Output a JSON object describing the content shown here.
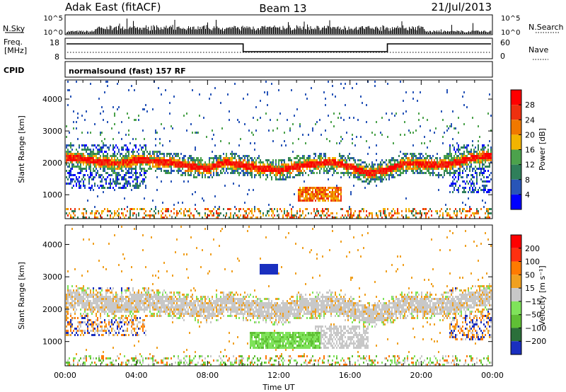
{
  "header": {
    "station": "Adak East (fitACF)",
    "beam": "Beam 13",
    "date": "21/Jul/2013"
  },
  "summary": {
    "nsky_label": "N.Sky",
    "nsky_ticks": [
      "10^5",
      "10^0"
    ],
    "nsearch_label": "N.Search",
    "freq_label_line1": "Freq.",
    "freq_label_line2": "[MHz]",
    "freq_ticks": [
      "18",
      "8"
    ],
    "nave_label": "Nave",
    "nave_ticks": [
      "60",
      "0"
    ],
    "cpid_label": "CPID",
    "cpid_text": "normalsound (fast) 157 RF"
  },
  "chart_data": [
    {
      "type": "heatmap",
      "name": "power",
      "ylabel": "Slant Range [km]",
      "xlabel": "",
      "yticks": [
        1000,
        2000,
        3000,
        4000
      ],
      "ylim": [
        250,
        4600
      ],
      "colorbar_label": "Power [dB]",
      "colorbar_ticks": [
        "4",
        "8",
        "12",
        "16",
        "20",
        "24",
        "28"
      ],
      "colors": [
        "#0000ff",
        "#2855b8",
        "#2f7f5a",
        "#4ca24c",
        "#f2b400",
        "#f07800",
        "#ee3010",
        "#ff0000"
      ],
      "ridge_hours": [
        0,
        1,
        2,
        3,
        4,
        5,
        6,
        7,
        8,
        9,
        10,
        11,
        12,
        13,
        14,
        15,
        16,
        17,
        18,
        19,
        20,
        21,
        22,
        23,
        24
      ],
      "ridge_range_km": [
        2200,
        2150,
        2050,
        2000,
        2120,
        2080,
        2020,
        1920,
        1850,
        2050,
        1950,
        1850,
        1800,
        1920,
        2000,
        2050,
        1900,
        1700,
        1800,
        2020,
        2000,
        1950,
        2050,
        2200,
        2250
      ]
    },
    {
      "type": "heatmap",
      "name": "velocity",
      "ylabel": "Slant Range [km]",
      "xlabel": "Time UT",
      "yticks": [
        1000,
        2000,
        3000,
        4000
      ],
      "ylim": [
        250,
        4600
      ],
      "xticks": [
        "00:00",
        "04:00",
        "08:00",
        "12:00",
        "16:00",
        "20:00",
        "00:00"
      ],
      "colorbar_label": "Velocity [m s⁻¹]",
      "colorbar_ticks": [
        "200",
        "100",
        "50",
        "15",
        "−15",
        "−50",
        "−100",
        "−200"
      ],
      "colors": [
        "#1a2fbf",
        "#2b6f3a",
        "#5fbf35",
        "#7fe35a",
        "#c8c8c8",
        "#f0a020",
        "#ff7a00",
        "#ff3010",
        "#ff0000"
      ]
    }
  ]
}
